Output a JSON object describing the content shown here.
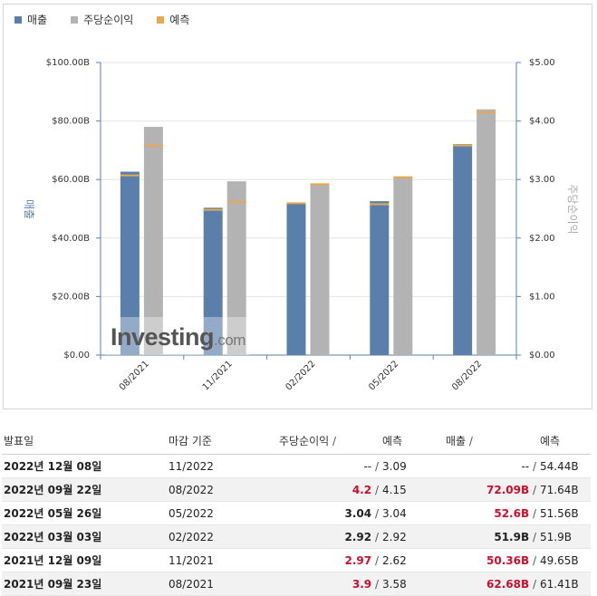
{
  "legend": [
    {
      "label": "매출",
      "color": "#5b7fab"
    },
    {
      "label": "주당순이익",
      "color": "#b3b3b3"
    },
    {
      "label": "예측",
      "color": "#e8a94a"
    }
  ],
  "watermark": {
    "brand": "Investing",
    "suffix": ".com"
  },
  "chart_data": {
    "type": "bar",
    "categories": [
      "08/2021",
      "11/2021",
      "02/2022",
      "05/2022",
      "08/2022"
    ],
    "series": [
      {
        "name": "매출",
        "axis": "left",
        "values": [
          62.68,
          50.36,
          51.9,
          52.6,
          72.09
        ],
        "forecast": [
          61.41,
          49.65,
          51.9,
          51.56,
          71.64
        ],
        "color": "#5b7fab"
      },
      {
        "name": "주당순이익",
        "axis": "right",
        "values": [
          3.9,
          2.97,
          2.92,
          3.04,
          4.2
        ],
        "forecast": [
          3.58,
          2.62,
          2.92,
          3.04,
          4.15
        ],
        "color": "#b3b3b3"
      }
    ],
    "forecast_color": "#e8a94a",
    "ylabel": "매출",
    "y2label": "주당순이익",
    "ylim": [
      0,
      100
    ],
    "y2lim": [
      0,
      5
    ],
    "yticks": [
      "$0.00",
      "$20.00B",
      "$40.00B",
      "$60.00B",
      "$80.00B",
      "$100.00B"
    ],
    "y2ticks": [
      "$0.00",
      "$1.00",
      "$2.00",
      "$3.00",
      "$4.00",
      "$5.00"
    ],
    "grid": true
  },
  "table": {
    "headers": {
      "date": "발표일",
      "period": "마감 기준",
      "eps": "주당순이익",
      "eps_forecast": "예측",
      "rev": "매출",
      "rev_forecast": "예측",
      "slash": "/"
    },
    "rows": [
      {
        "date": "2022년 12월 08일",
        "period": "11/2022",
        "eps": "--",
        "eps_forecast": "3.09",
        "rev": "--",
        "rev_forecast": "54.44B",
        "eps_style": "none",
        "rev_style": "none"
      },
      {
        "date": "2022년 09월 22일",
        "period": "08/2022",
        "eps": "4.2",
        "eps_forecast": "4.15",
        "rev": "72.09B",
        "rev_forecast": "71.64B",
        "eps_style": "red",
        "rev_style": "red"
      },
      {
        "date": "2022년 05월 26일",
        "period": "05/2022",
        "eps": "3.04",
        "eps_forecast": "3.04",
        "rev": "52.6B",
        "rev_forecast": "51.56B",
        "eps_style": "blk",
        "rev_style": "red"
      },
      {
        "date": "2022년 03월 03일",
        "period": "02/2022",
        "eps": "2.92",
        "eps_forecast": "2.92",
        "rev": "51.9B",
        "rev_forecast": "51.9B",
        "eps_style": "blk",
        "rev_style": "blk"
      },
      {
        "date": "2021년 12월 09일",
        "period": "11/2021",
        "eps": "2.97",
        "eps_forecast": "2.62",
        "rev": "50.36B",
        "rev_forecast": "49.65B",
        "eps_style": "red",
        "rev_style": "red"
      },
      {
        "date": "2021년 09월 23일",
        "period": "08/2021",
        "eps": "3.9",
        "eps_forecast": "3.58",
        "rev": "62.68B",
        "rev_forecast": "61.41B",
        "eps_style": "red",
        "rev_style": "red"
      }
    ]
  }
}
